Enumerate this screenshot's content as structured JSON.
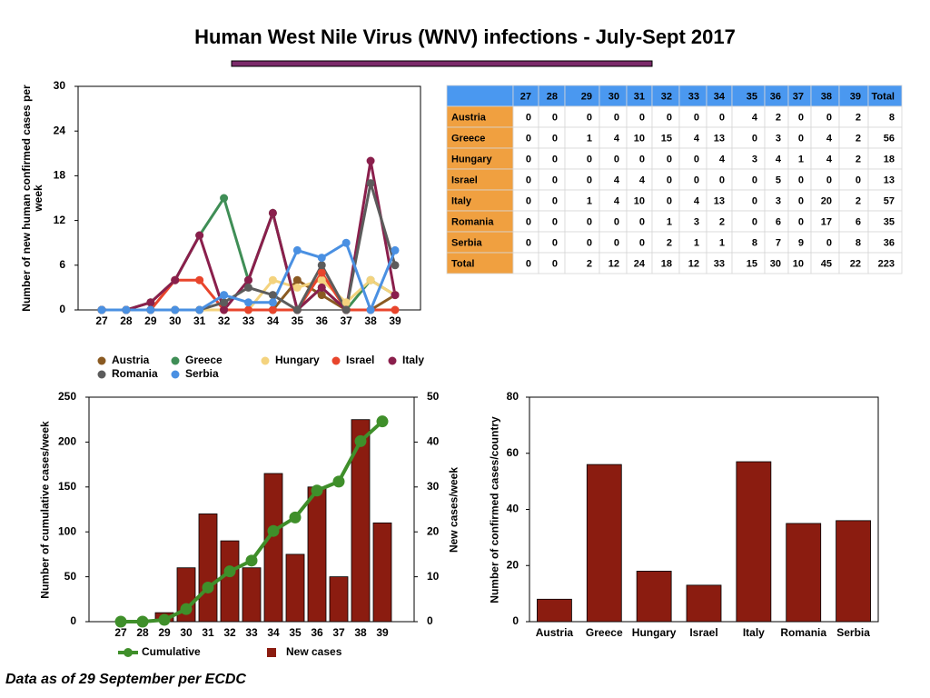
{
  "title": "Human West Nile Virus (WNV) infections - July-Sept 2017",
  "footnote": "Data as of 29 September per ECDC",
  "table": {
    "total_label": "Total"
  },
  "chart_data": [
    {
      "type": "line",
      "ylabel": "Number of new human confirmed cases per week",
      "categories": [
        "27",
        "28",
        "29",
        "30",
        "31",
        "32",
        "33",
        "34",
        "35",
        "36",
        "37",
        "38",
        "39"
      ],
      "ylim": [
        0,
        30
      ],
      "yticks": [
        0,
        6,
        12,
        18,
        24,
        30
      ],
      "grid": false,
      "legend": "bottom",
      "series": [
        {
          "name": "Austria",
          "color": "#8a5a22",
          "values": [
            0,
            0,
            0,
            0,
            0,
            0,
            0,
            0,
            4,
            2,
            0,
            0,
            2
          ]
        },
        {
          "name": "Greece",
          "color": "#3f8e56",
          "values": [
            0,
            0,
            1,
            4,
            10,
            15,
            4,
            13,
            0,
            3,
            0,
            4,
            2
          ]
        },
        {
          "name": "Hungary",
          "color": "#f4d37e",
          "values": [
            0,
            0,
            0,
            0,
            0,
            0,
            0,
            4,
            3,
            4,
            1,
            4,
            2
          ]
        },
        {
          "name": "Israel",
          "color": "#e8452c",
          "values": [
            0,
            0,
            0,
            4,
            4,
            0,
            0,
            0,
            0,
            5,
            0,
            0,
            0
          ]
        },
        {
          "name": "Italy",
          "color": "#8a1f4c",
          "values": [
            0,
            0,
            1,
            4,
            10,
            0,
            4,
            13,
            0,
            3,
            0,
            20,
            2
          ]
        },
        {
          "name": "Romania",
          "color": "#5c5c5c",
          "values": [
            0,
            0,
            0,
            0,
            0,
            1,
            3,
            2,
            0,
            6,
            0,
            17,
            6
          ]
        },
        {
          "name": "Serbia",
          "color": "#4a90e2",
          "values": [
            0,
            0,
            0,
            0,
            0,
            2,
            1,
            1,
            8,
            7,
            9,
            0,
            8
          ]
        }
      ]
    },
    {
      "type": "combo",
      "ylabel": "Number of cumulative cases/week",
      "y2label": "New cases/week",
      "categories": [
        "27",
        "28",
        "29",
        "30",
        "31",
        "32",
        "33",
        "34",
        "35",
        "36",
        "37",
        "38",
        "39"
      ],
      "ylim": [
        0,
        250
      ],
      "yticks": [
        0,
        50,
        100,
        150,
        200,
        250
      ],
      "y2lim": [
        0,
        50
      ],
      "y2ticks": [
        0,
        10,
        20,
        30,
        40,
        50
      ],
      "grid": false,
      "legend": "bottom",
      "series": [
        {
          "name": "Cumulative",
          "kind": "line",
          "color": "#3f8f2a",
          "values": [
            0,
            0,
            2,
            14,
            38,
            56,
            68,
            101,
            116,
            146,
            156,
            201,
            223
          ]
        },
        {
          "name": "New cases",
          "kind": "bar",
          "axis": "y2",
          "color": "#8b1c10",
          "values": [
            0,
            0,
            2,
            12,
            24,
            18,
            12,
            33,
            15,
            30,
            10,
            45,
            22
          ]
        }
      ]
    },
    {
      "type": "bar",
      "ylabel": "Number of confirmed cases/country",
      "categories": [
        "Austria",
        "Greece",
        "Hungary",
        "Israel",
        "Italy",
        "Romania",
        "Serbia"
      ],
      "values": [
        8,
        56,
        18,
        13,
        57,
        35,
        36
      ],
      "color": "#8b1c10",
      "ylim": [
        0,
        80
      ],
      "yticks": [
        0,
        20,
        40,
        60,
        80
      ],
      "grid": false
    }
  ]
}
